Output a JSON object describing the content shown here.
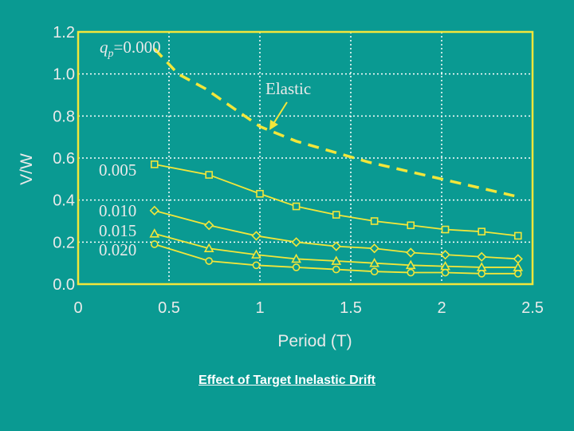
{
  "colors": {
    "background": "#0a9a92",
    "frame": "#f2e63a",
    "text": "#eaeaea",
    "caption": "#ffffff"
  },
  "caption": "Effect of Target Inelastic Drift",
  "chart_data": {
    "type": "line",
    "xlabel": "Period (T)",
    "ylabel": "V/W",
    "xlim": [
      0,
      2.5
    ],
    "ylim": [
      0,
      1.2
    ],
    "xticks": [
      "0",
      "0.5",
      "1",
      "1.5",
      "2",
      "2.5"
    ],
    "yticks": [
      "0.0",
      "0.2",
      "0.4",
      "0.6",
      "0.8",
      "1.0",
      "1.2"
    ],
    "grid": true,
    "series": [
      {
        "name": "0.000",
        "style": "dashed",
        "marker": "none",
        "x": [
          0.42,
          0.55,
          0.7,
          0.85,
          1.0,
          1.2,
          1.4,
          1.6,
          1.8,
          2.0,
          2.2,
          2.4
        ],
        "y": [
          1.12,
          1.0,
          0.93,
          0.84,
          0.75,
          0.68,
          0.63,
          0.58,
          0.54,
          0.5,
          0.46,
          0.42
        ]
      },
      {
        "name": "0.005",
        "style": "solid",
        "marker": "square",
        "x": [
          0.42,
          0.72,
          1.0,
          1.2,
          1.42,
          1.63,
          1.83,
          2.02,
          2.22,
          2.42
        ],
        "y": [
          0.57,
          0.52,
          0.43,
          0.37,
          0.33,
          0.3,
          0.28,
          0.26,
          0.25,
          0.23
        ]
      },
      {
        "name": "0.010",
        "style": "solid",
        "marker": "diamond",
        "x": [
          0.42,
          0.72,
          0.98,
          1.2,
          1.42,
          1.63,
          1.83,
          2.02,
          2.22,
          2.42
        ],
        "y": [
          0.35,
          0.28,
          0.23,
          0.2,
          0.18,
          0.17,
          0.15,
          0.14,
          0.13,
          0.12
        ]
      },
      {
        "name": "0.015",
        "style": "solid",
        "marker": "triangle",
        "x": [
          0.42,
          0.72,
          0.98,
          1.2,
          1.42,
          1.63,
          1.83,
          2.02,
          2.22,
          2.42
        ],
        "y": [
          0.24,
          0.17,
          0.14,
          0.12,
          0.11,
          0.1,
          0.09,
          0.085,
          0.08,
          0.08
        ]
      },
      {
        "name": "0.020",
        "style": "solid",
        "marker": "circle",
        "x": [
          0.42,
          0.72,
          0.98,
          1.2,
          1.42,
          1.63,
          1.83,
          2.02,
          2.22,
          2.42
        ],
        "y": [
          0.19,
          0.11,
          0.09,
          0.08,
          0.07,
          0.06,
          0.055,
          0.055,
          0.05,
          0.05
        ]
      }
    ],
    "annotations": {
      "qp_symbol": "q",
      "qp_subscript": "p",
      "qp_value": "=0.000",
      "elastic": "Elastic",
      "labels": [
        "0.005",
        "0.010",
        "0.015",
        "0.020"
      ]
    }
  }
}
